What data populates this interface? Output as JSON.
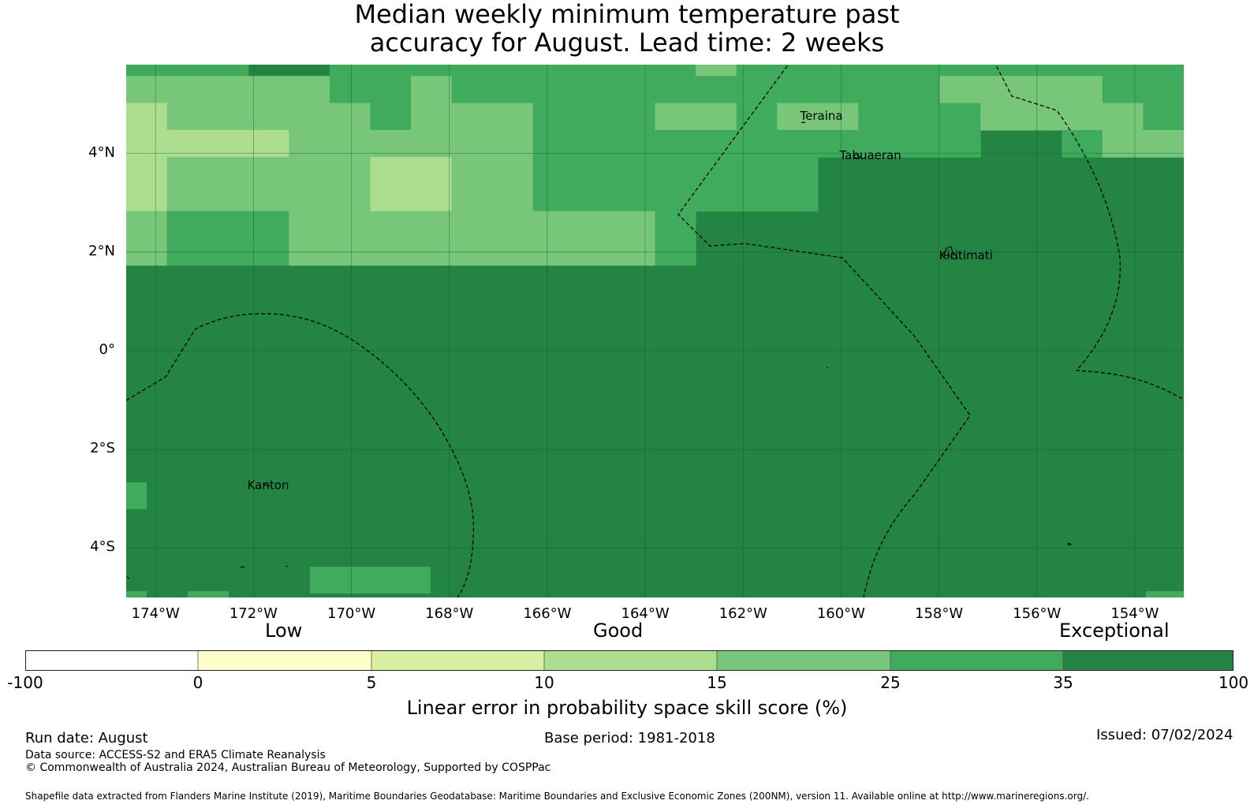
{
  "title_line1": "Median weekly minimum temperature past",
  "title_line2": "accuracy for August. Lead time: 2 weeks",
  "map": {
    "lon_range": [
      -174.6,
      -153.0
    ],
    "lat_range": [
      -5.0,
      5.8
    ],
    "x_ticks": [
      "174°W",
      "172°W",
      "170°W",
      "168°W",
      "166°W",
      "164°W",
      "162°W",
      "160°W",
      "158°W",
      "156°W",
      "154°W"
    ],
    "y_ticks": [
      "4°N",
      "2°N",
      "0°",
      "2°S",
      "4°S"
    ],
    "places": [
      {
        "name": "Teraina",
        "lon": -160.4,
        "lat": 4.68
      },
      {
        "name": "Tabuaeran",
        "lon": -159.4,
        "lat": 3.88
      },
      {
        "name": "Kiritimati",
        "lon": -157.45,
        "lat": 1.85
      },
      {
        "name": "Kanton",
        "lon": -171.7,
        "lat": -2.8
      }
    ],
    "grid_rows": [
      "cccddcccccccccbcccccccccccccbcd",
      "bbbbbccbccccccccccccbbbbcccccc",
      "abbbbbcbbbcccbbcbbcccbbbbcccccc",
      "aaaabbbbbbcccccccccccddcbbddcdd",
      "abbbbbaabbcccccccddddddddddddd",
      "abbbbbaabbcccccccdddddddddddddd",
      "bcccbbbbbbbbbcdddddddddddddddd",
      "bcccbbbbbbbbbcdddddddddddddddd"
    ]
  },
  "legend": {
    "low": "Low",
    "good": "Good",
    "exceptional": "Exceptional",
    "ticks": [
      "-100",
      "0",
      "5",
      "10",
      "15",
      "25",
      "35",
      "100"
    ],
    "colors": [
      "#ffffff",
      "#ffffcc",
      "#d9f0a3",
      "#addd8e",
      "#78c679",
      "#41ab5d",
      "#238443"
    ],
    "label": "Linear error in probability space skill score (%)"
  },
  "footer": {
    "run_date": "Run date: August",
    "base_period": "Base period: 1981-2018",
    "issued": "Issued: 07/02/2024",
    "data_source": "Data source: ACCESS-S2 and ERA5 Climate Reanalysis",
    "copyright": "© Commonwealth of Australia 2024, Australian Bureau of Meteorology, Supported by COSPPac",
    "shapefile": "Shapefile data extracted from Flanders Marine Institute (2019), Maritime Boundaries Geodatabase: Maritime Boundaries and Exclusive Economic Zones (200NM), version 11. Available online at http://www.marineregions.org/."
  }
}
